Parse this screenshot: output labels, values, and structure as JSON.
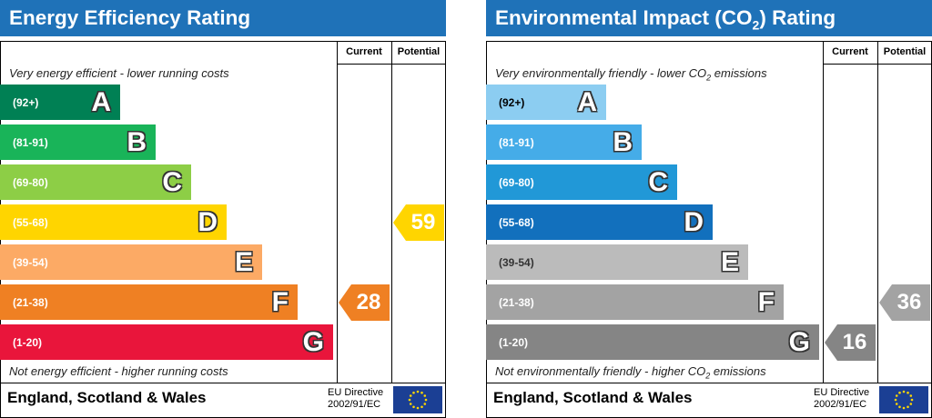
{
  "chart_data": [
    {
      "type": "bar",
      "title": "Energy Efficiency Rating",
      "columns": [
        "Current",
        "Potential"
      ],
      "top_caption": "Very energy efficient - lower running costs",
      "bottom_caption": "Not energy efficient - higher running costs",
      "bands": [
        {
          "range": "(92+)",
          "letter": "A",
          "color": "#008054"
        },
        {
          "range": "(81-91)",
          "letter": "B",
          "color": "#19b459"
        },
        {
          "range": "(69-80)",
          "letter": "C",
          "color": "#8dce46"
        },
        {
          "range": "(55-68)",
          "letter": "D",
          "color": "#ffd500"
        },
        {
          "range": "(39-54)",
          "letter": "E",
          "color": "#fcaa65"
        },
        {
          "range": "(21-38)",
          "letter": "F",
          "color": "#ef8023"
        },
        {
          "range": "(1-20)",
          "letter": "G",
          "color": "#e9153b"
        }
      ],
      "current": {
        "value": "28",
        "band": "F",
        "color": "#ef8023"
      },
      "potential": {
        "value": "59",
        "band": "D",
        "color": "#ffd500"
      },
      "footer": "England, Scotland & Wales",
      "directive_line1": "EU Directive",
      "directive_line2": "2002/91/EC"
    },
    {
      "type": "bar",
      "title_prefix": "Environmental Impact (CO",
      "title_sub": "2",
      "title_suffix": ") Rating",
      "columns": [
        "Current",
        "Potential"
      ],
      "top_caption_prefix": "Very environmentally friendly - lower CO",
      "top_caption_sub": "2",
      "top_caption_suffix": " emissions",
      "bottom_caption_prefix": "Not environmentally friendly - higher CO",
      "bottom_caption_sub": "2",
      "bottom_caption_suffix": " emissions",
      "bands": [
        {
          "range": "(92+)",
          "letter": "A",
          "color": "#8ccdf1"
        },
        {
          "range": "(81-91)",
          "letter": "B",
          "color": "#45ace8"
        },
        {
          "range": "(69-80)",
          "letter": "C",
          "color": "#2198d7"
        },
        {
          "range": "(55-68)",
          "letter": "D",
          "color": "#1270bd"
        },
        {
          "range": "(39-54)",
          "letter": "E",
          "color": "#bbbbbb"
        },
        {
          "range": "(21-38)",
          "letter": "F",
          "color": "#a3a3a3"
        },
        {
          "range": "(1-20)",
          "letter": "G",
          "color": "#858585"
        }
      ],
      "current": {
        "value": "16",
        "band": "G",
        "color": "#858585"
      },
      "potential": {
        "value": "36",
        "band": "F",
        "color": "#a3a3a3"
      },
      "footer": "England, Scotland & Wales",
      "directive_line1": "EU Directive",
      "directive_line2": "2002/91/EC"
    }
  ]
}
